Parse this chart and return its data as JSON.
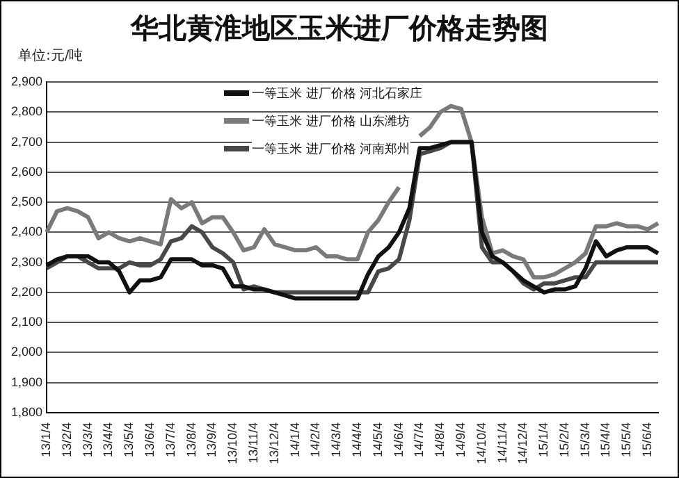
{
  "chart_data": {
    "type": "line",
    "title": "华北黄淮地区玉米进厂价格走势图",
    "ylabel": "单位:元/吨",
    "categories": [
      "13/1/4",
      null,
      "13/2/4",
      null,
      "13/3/4",
      null,
      "13/4/4",
      null,
      "13/5/4",
      null,
      "13/6/4",
      null,
      "13/7/4",
      null,
      "13/8/4",
      null,
      "13/9/4",
      null,
      "13/10/4",
      null,
      "13/11/4",
      null,
      "13/12/4",
      null,
      "14/1/4",
      null,
      "14/2/4",
      null,
      "14/3/4",
      null,
      "14/4/4",
      null,
      "14/5/4",
      null,
      "14/6/4",
      null,
      "14/7/4",
      null,
      "14/8/4",
      null,
      "14/9/4",
      null,
      "14/10/4",
      null,
      "14/11/4",
      null,
      "14/12/4",
      null,
      "15/1/4",
      null,
      "15/2/4",
      null,
      "15/3/4",
      null,
      "15/4/4",
      null,
      "15/5/4",
      null,
      "15/6/4",
      null
    ],
    "series": [
      {
        "name": "一等玉米 进厂价格 河北石家庄",
        "color": "#111111",
        "values": [
          2290,
          2310,
          2320,
          2320,
          2320,
          2300,
          2300,
          2270,
          2200,
          2240,
          2240,
          2250,
          2310,
          2310,
          2310,
          2290,
          2290,
          2280,
          2220,
          2220,
          2210,
          2210,
          2200,
          2190,
          2180,
          2180,
          2180,
          2180,
          2180,
          2180,
          2180,
          2260,
          2320,
          2350,
          2400,
          2480,
          2680,
          2680,
          2690,
          2700,
          2700,
          2700,
          2400,
          2320,
          2300,
          2270,
          2240,
          2220,
          2200,
          2210,
          2210,
          2220,
          2280,
          2370,
          2320,
          2340,
          2350,
          2350,
          2350,
          2330
        ]
      },
      {
        "name": "一等玉米 进厂价格 山东潍坊",
        "color": "#7a7a7a",
        "values": [
          2400,
          2470,
          2480,
          2470,
          2450,
          2380,
          2400,
          2380,
          2370,
          2380,
          2370,
          2360,
          2510,
          2480,
          2500,
          2430,
          2450,
          2450,
          2400,
          2340,
          2350,
          2410,
          2360,
          2350,
          2340,
          2340,
          2350,
          2320,
          2320,
          2310,
          2310,
          2400,
          2440,
          2500,
          2550,
          null,
          2720,
          2750,
          2800,
          2820,
          2810,
          2700,
          2450,
          2330,
          2340,
          2320,
          2310,
          2250,
          2250,
          2260,
          2280,
          2300,
          2330,
          2420,
          2420,
          2430,
          2420,
          2420,
          2410,
          2430
        ]
      },
      {
        "name": "一等玉米 进厂价格 河南郑州",
        "color": "#484848",
        "values": [
          2280,
          2300,
          2320,
          2320,
          2300,
          2280,
          2280,
          2280,
          2300,
          2290,
          2290,
          2310,
          2370,
          2380,
          2420,
          2400,
          2350,
          2330,
          2300,
          2210,
          2220,
          2210,
          2200,
          2200,
          2200,
          2200,
          2200,
          2200,
          2200,
          2200,
          2200,
          2200,
          2270,
          2280,
          2310,
          2440,
          2660,
          2670,
          2680,
          2700,
          2700,
          2700,
          2350,
          2300,
          2300,
          2270,
          2230,
          2210,
          2230,
          2230,
          2240,
          2250,
          2250,
          2300,
          2300,
          2300,
          2300,
          2300,
          2300,
          2300
        ]
      }
    ],
    "ylim": [
      1800,
      2900
    ],
    "yticks": [
      {
        "value": 1800,
        "label": "1,800"
      },
      {
        "value": 1900,
        "label": "1,900"
      },
      {
        "value": 2000,
        "label": "2,000"
      },
      {
        "value": 2100,
        "label": "2,100"
      },
      {
        "value": 2200,
        "label": "2,200"
      },
      {
        "value": 2300,
        "label": "2,300"
      },
      {
        "value": 2400,
        "label": "2,400"
      },
      {
        "value": 2500,
        "label": "2,500"
      },
      {
        "value": 2600,
        "label": "2,600"
      },
      {
        "value": 2700,
        "label": "2,700"
      },
      {
        "value": 2800,
        "label": "2,800"
      },
      {
        "value": 2900,
        "label": "2,900"
      }
    ],
    "grid": "y",
    "legend": "top",
    "marker": "none",
    "line_style": "solid"
  }
}
